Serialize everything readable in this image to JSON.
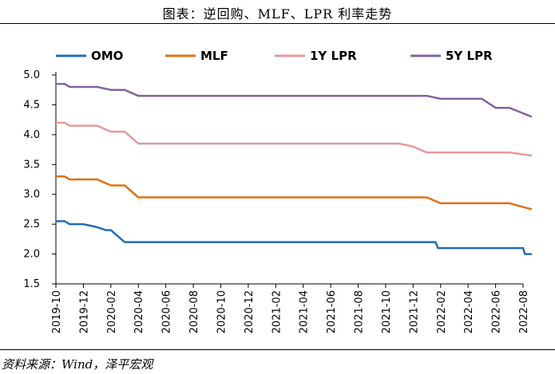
{
  "header": {
    "title": "图表：逆回购、MLF、LPR 利率走势"
  },
  "footer": {
    "source": "资料来源：Wind，泽平宏观"
  },
  "chart_data": {
    "type": "line",
    "title": "图表：逆回购、MLF、LPR 利率走势",
    "xlabel": "",
    "ylabel": "",
    "ylim": [
      1.5,
      5.0
    ],
    "yticks": [
      "5.0",
      "4.5",
      "4.0",
      "3.5",
      "3.0",
      "2.5",
      "2.0",
      "1.5"
    ],
    "xlim": [
      "2019-10",
      "2022-08"
    ],
    "xticks": [
      "2019-10",
      "2019-12",
      "2020-02",
      "2020-04",
      "2020-06",
      "2020-08",
      "2020-10",
      "2020-12",
      "2021-02",
      "2021-04",
      "2021-06",
      "2021-08",
      "2021-10",
      "2021-12",
      "2022-02",
      "2022-04",
      "2022-06",
      "2022-08"
    ],
    "grid": false,
    "legend_position": "top",
    "series": [
      {
        "name": "OMO",
        "color": "#1f6fb5",
        "points": [
          [
            "2019-10",
            2.55
          ],
          [
            "2019-10-20",
            2.55
          ],
          [
            "2019-11",
            2.5
          ],
          [
            "2019-12",
            2.5
          ],
          [
            "2020-01",
            2.45
          ],
          [
            "2020-01-20",
            2.4
          ],
          [
            "2020-02",
            2.4
          ],
          [
            "2020-03",
            2.2
          ],
          [
            "2021-12-31",
            2.2
          ],
          [
            "2022-01-20",
            2.2
          ],
          [
            "2022-01-25",
            2.1
          ],
          [
            "2022-07-31",
            2.1
          ],
          [
            "2022-08-05",
            2.0
          ],
          [
            "2022-08-20",
            2.0
          ]
        ]
      },
      {
        "name": "MLF",
        "color": "#e07116",
        "points": [
          [
            "2019-10",
            3.3
          ],
          [
            "2019-10-20",
            3.3
          ],
          [
            "2019-11",
            3.25
          ],
          [
            "2019-12",
            3.25
          ],
          [
            "2020-01",
            3.25
          ],
          [
            "2020-02",
            3.15
          ],
          [
            "2020-03",
            3.15
          ],
          [
            "2020-04",
            2.95
          ],
          [
            "2022-01",
            2.95
          ],
          [
            "2022-02",
            2.85
          ],
          [
            "2022-07",
            2.85
          ],
          [
            "2022-08-20",
            2.75
          ]
        ]
      },
      {
        "name": "1Y LPR",
        "color": "#e59a9a",
        "points": [
          [
            "2019-10",
            4.2
          ],
          [
            "2019-10-20",
            4.2
          ],
          [
            "2019-11",
            4.15
          ],
          [
            "2020-01",
            4.15
          ],
          [
            "2020-02",
            4.05
          ],
          [
            "2020-03",
            4.05
          ],
          [
            "2020-04",
            3.85
          ],
          [
            "2021-11",
            3.85
          ],
          [
            "2021-12",
            3.8
          ],
          [
            "2022-01",
            3.7
          ],
          [
            "2022-07",
            3.7
          ],
          [
            "2022-08-20",
            3.65
          ]
        ]
      },
      {
        "name": "5Y LPR",
        "color": "#8064a2",
        "points": [
          [
            "2019-10",
            4.85
          ],
          [
            "2019-10-20",
            4.85
          ],
          [
            "2019-11",
            4.8
          ],
          [
            "2020-01",
            4.8
          ],
          [
            "2020-02",
            4.75
          ],
          [
            "2020-03",
            4.75
          ],
          [
            "2020-04",
            4.65
          ],
          [
            "2022-01",
            4.65
          ],
          [
            "2022-02",
            4.6
          ],
          [
            "2022-05",
            4.6
          ],
          [
            "2022-06",
            4.45
          ],
          [
            "2022-07",
            4.45
          ],
          [
            "2022-08-20",
            4.3
          ]
        ]
      }
    ]
  }
}
